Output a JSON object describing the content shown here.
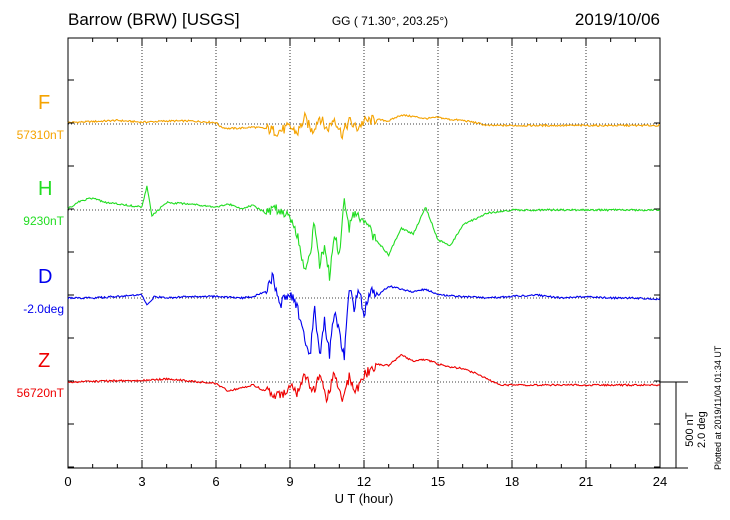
{
  "header": {
    "station": "Barrow (BRW)  [USGS]",
    "coords": "GG ( 71.30°, 203.25°)",
    "date": "2019/10/06"
  },
  "side_note": "Plotted at 2019/11/04 01:34 UT",
  "scale": {
    "line1": "500 nT",
    "line2": "2.0 deg"
  },
  "chart_data": {
    "type": "line",
    "xlabel": "U T (hour)",
    "xlim": [
      0,
      24
    ],
    "xticks": [
      0,
      3,
      6,
      9,
      12,
      15,
      18,
      21,
      24
    ],
    "grid": true,
    "series": [
      {
        "name": "F",
        "baseline_label": "57310nT",
        "color": "#f5a300",
        "x": [
          0,
          1,
          2,
          3,
          4,
          5,
          6,
          6.2,
          6.5,
          7,
          7.5,
          8,
          8.5,
          9,
          9.3,
          9.6,
          9.9,
          10.2,
          10.5,
          10.8,
          11.1,
          11.4,
          11.7,
          12,
          12.5,
          13,
          13.5,
          14,
          14.5,
          15,
          15.5,
          16,
          16.5,
          17,
          17.5,
          18,
          19,
          20,
          21,
          22,
          23,
          24
        ],
        "y": [
          5,
          8,
          12,
          6,
          10,
          10,
          5,
          -10,
          -15,
          -14,
          -10,
          -15,
          -25,
          -10,
          -30,
          20,
          -25,
          25,
          -20,
          20,
          -35,
          10,
          -15,
          8,
          15,
          10,
          30,
          25,
          18,
          22,
          15,
          12,
          5,
          -5,
          -5,
          -5,
          -5,
          -5,
          -5,
          -5,
          -5,
          -5
        ]
      },
      {
        "name": "H",
        "baseline_label": "9230nT",
        "color": "#22dd22",
        "x": [
          0,
          0.5,
          1,
          1.5,
          2,
          2.5,
          3,
          3.2,
          3.4,
          4,
          5,
          6,
          6.5,
          7,
          7.5,
          8,
          8.5,
          9,
          9.3,
          9.6,
          9.8,
          10,
          10.2,
          10.4,
          10.6,
          10.8,
          11,
          11.2,
          11.4,
          11.6,
          11.8,
          12,
          12.5,
          13,
          13.5,
          14,
          14.5,
          15,
          15.5,
          16,
          16.5,
          17,
          18,
          19,
          20,
          21,
          22,
          23,
          24
        ],
        "y": [
          5,
          30,
          40,
          25,
          20,
          15,
          10,
          80,
          -20,
          25,
          20,
          10,
          20,
          5,
          15,
          -10,
          5,
          -20,
          -80,
          -200,
          -150,
          -40,
          -180,
          -120,
          -220,
          -80,
          -150,
          30,
          -60,
          -10,
          -30,
          -40,
          -100,
          -150,
          -60,
          -80,
          10,
          -100,
          -120,
          -50,
          -30,
          -10,
          0,
          0,
          0,
          0,
          0,
          0,
          0
        ]
      },
      {
        "name": "D",
        "baseline_label": "-2.0deg",
        "color": "#0000ee",
        "x": [
          0,
          1,
          2,
          3,
          3.2,
          3.5,
          4,
          5,
          6,
          7,
          7.5,
          8,
          8.3,
          8.6,
          9,
          9.3,
          9.6,
          9.8,
          10,
          10.2,
          10.4,
          10.6,
          10.8,
          11,
          11.2,
          11.4,
          11.6,
          11.8,
          12,
          12.3,
          12.6,
          13,
          13.5,
          14,
          14.5,
          15,
          16,
          17,
          18,
          19,
          20,
          21,
          22,
          23,
          24
        ],
        "y": [
          0,
          0,
          5,
          10,
          -25,
          5,
          0,
          5,
          5,
          0,
          5,
          20,
          70,
          -20,
          20,
          -30,
          -140,
          -200,
          -40,
          -200,
          -80,
          -190,
          -40,
          -120,
          -200,
          40,
          -30,
          20,
          -50,
          30,
          10,
          40,
          30,
          20,
          30,
          10,
          5,
          0,
          5,
          10,
          0,
          5,
          0,
          0,
          -5
        ]
      },
      {
        "name": "Z",
        "baseline_label": "56720nT",
        "color": "#ee0000",
        "x": [
          0,
          1,
          2,
          3,
          4,
          5,
          6,
          6.5,
          7,
          7.5,
          8,
          8.5,
          9,
          9.3,
          9.6,
          9.9,
          10.2,
          10.5,
          10.8,
          11.1,
          11.4,
          11.7,
          12,
          12.5,
          13,
          13.5,
          14,
          14.5,
          15,
          15.5,
          16,
          16.5,
          17,
          17.5,
          18,
          19,
          20,
          21,
          22,
          23,
          24
        ],
        "y": [
          0,
          2,
          4,
          5,
          10,
          3,
          -5,
          -30,
          -20,
          -10,
          -30,
          -50,
          -15,
          -40,
          30,
          -40,
          20,
          -60,
          30,
          -60,
          15,
          -30,
          25,
          60,
          55,
          90,
          70,
          75,
          60,
          50,
          45,
          30,
          10,
          -10,
          -10,
          -10,
          -10,
          -10,
          -10,
          -10,
          -10
        ]
      }
    ]
  }
}
